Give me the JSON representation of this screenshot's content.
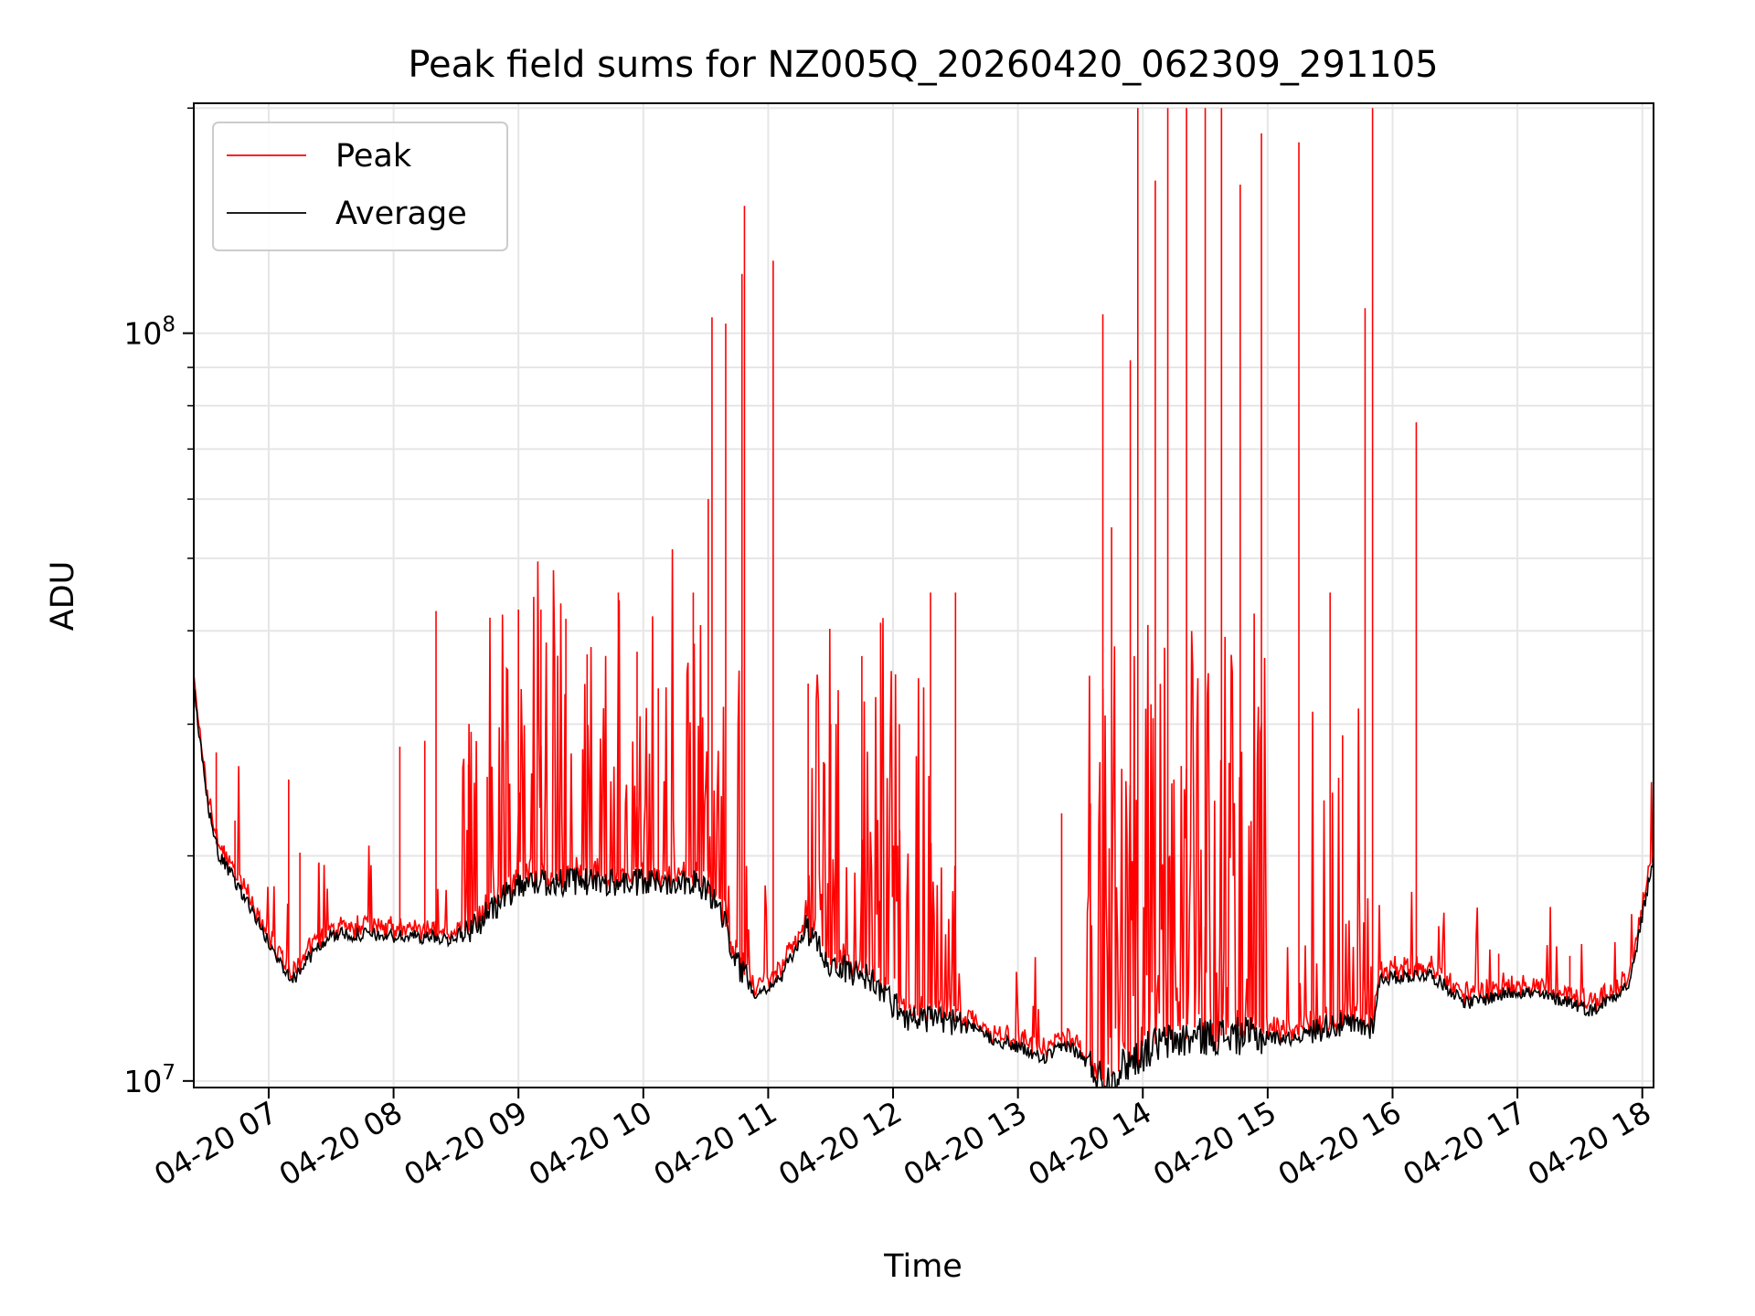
{
  "chart_data": {
    "type": "line",
    "title": "Peak field sums for NZ005Q_20260420_062309_291105",
    "xlabel": "Time",
    "ylabel": "ADU",
    "yscale": "log",
    "ylim": [
      9800000,
      203000000
    ],
    "xlim_hours": [
      6.4,
      18.09
    ],
    "x_ticks": [
      {
        "hour": 7,
        "label": "04-20 07"
      },
      {
        "hour": 8,
        "label": "04-20 08"
      },
      {
        "hour": 9,
        "label": "04-20 09"
      },
      {
        "hour": 10,
        "label": "04-20 10"
      },
      {
        "hour": 11,
        "label": "04-20 11"
      },
      {
        "hour": 12,
        "label": "04-20 12"
      },
      {
        "hour": 13,
        "label": "04-20 13"
      },
      {
        "hour": 14,
        "label": "04-20 14"
      },
      {
        "hour": 15,
        "label": "04-20 15"
      },
      {
        "hour": 16,
        "label": "04-20 16"
      },
      {
        "hour": 17,
        "label": "04-20 17"
      },
      {
        "hour": 18,
        "label": "04-20 18"
      }
    ],
    "y_major_ticks": [
      {
        "value": 10000000,
        "base": "10",
        "exp": "7"
      },
      {
        "value": 100000000,
        "base": "10",
        "exp": "8"
      }
    ],
    "y_minor_ticks": [
      20000000,
      30000000,
      40000000,
      50000000,
      60000000,
      70000000,
      80000000,
      90000000,
      200000000
    ],
    "grid": true,
    "legend": {
      "position": "top-left",
      "entries": [
        "Peak",
        "Average"
      ]
    },
    "colors": {
      "peak": "#ff0000",
      "average": "#000000",
      "grid": "#e6e6e6"
    },
    "average_curve": [
      [
        6.4,
        33500000
      ],
      [
        6.5,
        24000000
      ],
      [
        6.6,
        20000000
      ],
      [
        6.75,
        18300000
      ],
      [
        6.9,
        16500000
      ],
      [
        7.05,
        14700000
      ],
      [
        7.2,
        13700000
      ],
      [
        7.32,
        14600000
      ],
      [
        7.5,
        15700000
      ],
      [
        7.8,
        15700000
      ],
      [
        8.0,
        15600000
      ],
      [
        8.2,
        15600000
      ],
      [
        8.45,
        15500000
      ],
      [
        8.6,
        15900000
      ],
      [
        8.8,
        17000000
      ],
      [
        9.0,
        18400000
      ],
      [
        9.5,
        18500000
      ],
      [
        10.0,
        18400000
      ],
      [
        10.4,
        18600000
      ],
      [
        10.6,
        17300000
      ],
      [
        10.75,
        14400000
      ],
      [
        10.9,
        13100000
      ],
      [
        11.1,
        13700000
      ],
      [
        11.3,
        16000000
      ],
      [
        11.5,
        14300000
      ],
      [
        11.8,
        13800000
      ],
      [
        12.1,
        12200000
      ],
      [
        12.5,
        12000000
      ],
      [
        12.8,
        11400000
      ],
      [
        13.0,
        11100000
      ],
      [
        13.2,
        10700000
      ],
      [
        13.4,
        11200000
      ],
      [
        13.6,
        10400000
      ],
      [
        13.7,
        9950000
      ],
      [
        13.85,
        10500000
      ],
      [
        14.1,
        11200000
      ],
      [
        14.5,
        11500000
      ],
      [
        14.8,
        11500000
      ],
      [
        15.2,
        11400000
      ],
      [
        15.5,
        11900000
      ],
      [
        15.84,
        11800000
      ],
      [
        15.9,
        13700000
      ],
      [
        16.3,
        13900000
      ],
      [
        16.6,
        12700000
      ],
      [
        17.0,
        13200000
      ],
      [
        17.4,
        12800000
      ],
      [
        17.6,
        12400000
      ],
      [
        17.9,
        13500000
      ],
      [
        18.09,
        20000000
      ]
    ],
    "peak_spikes": [
      [
        6.58,
        27500000
      ],
      [
        6.73,
        22300000
      ],
      [
        7.16,
        25300000
      ],
      [
        7.25,
        20200000
      ],
      [
        7.4,
        19500000
      ],
      [
        8.05,
        28000000
      ],
      [
        8.25,
        28500000
      ],
      [
        8.34,
        42500000
      ],
      [
        8.6,
        26500000
      ],
      [
        8.75,
        25500000
      ],
      [
        8.9,
        28500000
      ],
      [
        9.0,
        42700000
      ],
      [
        9.18,
        42700000
      ],
      [
        9.38,
        41500000
      ],
      [
        9.55,
        37200000
      ],
      [
        9.8,
        45000000
      ],
      [
        9.95,
        37500000
      ],
      [
        10.12,
        33500000
      ],
      [
        10.4,
        45000000
      ],
      [
        10.52,
        60000000
      ],
      [
        10.55,
        105000000
      ],
      [
        10.66,
        103000000
      ],
      [
        10.79,
        120000000
      ],
      [
        10.81,
        148000000
      ],
      [
        11.04,
        125000000
      ],
      [
        11.32,
        34000000
      ],
      [
        11.5,
        30000000
      ],
      [
        11.75,
        37000000
      ],
      [
        11.9,
        41000000
      ],
      [
        12.05,
        30000000
      ],
      [
        12.3,
        45000000
      ],
      [
        12.5,
        45000000
      ],
      [
        13.35,
        22800000
      ],
      [
        13.58,
        23500000
      ],
      [
        13.68,
        106000000
      ],
      [
        13.75,
        55000000
      ],
      [
        13.9,
        92000000
      ],
      [
        13.96,
        200000000
      ],
      [
        14.1,
        160000000
      ],
      [
        14.2,
        200000000
      ],
      [
        14.35,
        200000000
      ],
      [
        14.5,
        200000000
      ],
      [
        14.63,
        200000000
      ],
      [
        14.78,
        158000000
      ],
      [
        14.95,
        185000000
      ],
      [
        15.25,
        180000000
      ],
      [
        15.5,
        45000000
      ],
      [
        15.6,
        29000000
      ],
      [
        15.78,
        108000000
      ],
      [
        15.84,
        200000000
      ],
      [
        16.19,
        76000000
      ],
      [
        16.85,
        14800000
      ],
      [
        17.42,
        14700000
      ]
    ]
  },
  "legend_labels": {
    "peak": "Peak",
    "average": "Average"
  }
}
